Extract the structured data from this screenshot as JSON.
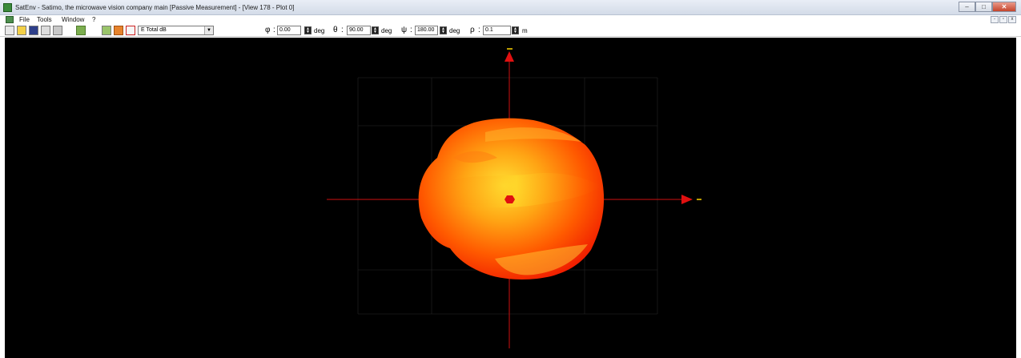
{
  "window": {
    "title": "SatEnv - Satimo, the microwave vision company main [Passive Measurement] - [View 178 - Plot 0]",
    "controls": [
      "–",
      "□",
      "✕"
    ]
  },
  "menu": {
    "items": [
      "File",
      "Tools",
      "Window",
      "?"
    ],
    "mdi_controls": [
      "-",
      "▫",
      "x"
    ]
  },
  "toolbar": {
    "quantity_select": "E Total  dB",
    "params": [
      {
        "symbol": "φ",
        "value": "0.00",
        "unit": "deg"
      },
      {
        "symbol": "θ",
        "value": "90.00",
        "unit": "deg"
      },
      {
        "symbol": "ψ",
        "value": "180.00",
        "unit": "deg"
      },
      {
        "symbol": "ρ",
        "value": "0.1",
        "unit": "m"
      }
    ]
  },
  "plot": {
    "background": "#000000",
    "axis_color": "#d01010",
    "axis_end_marker_color": "#ffd400",
    "grid_color": "#2a2a2a",
    "pattern_colors": {
      "peak": "#ffe033",
      "mid": "#ff8a10",
      "low": "#ff2a00"
    }
  }
}
